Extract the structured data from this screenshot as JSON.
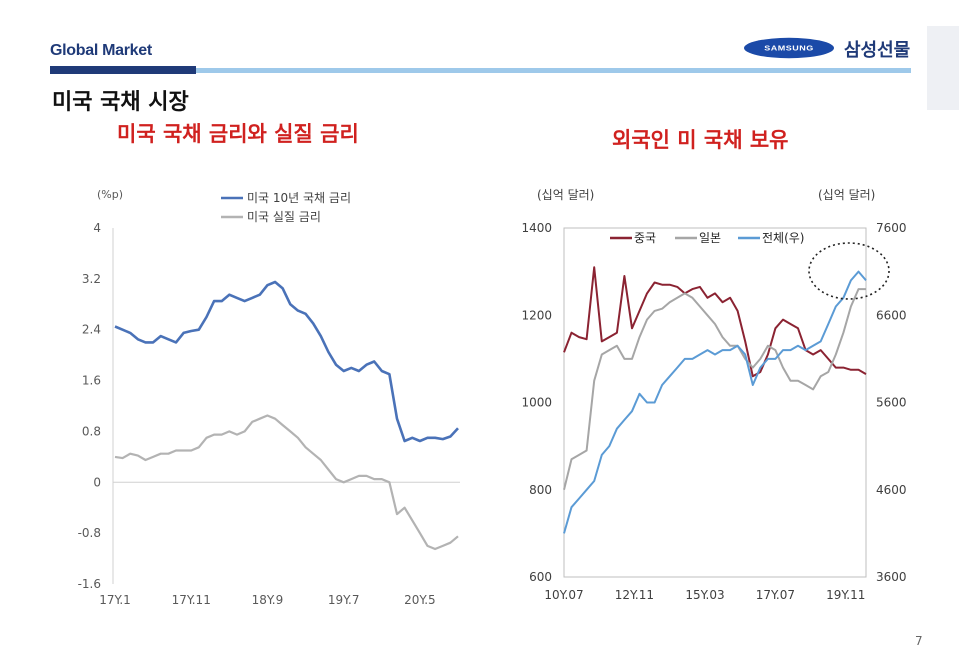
{
  "header": {
    "section_title": "Global Market",
    "brand_logo": "SAMSUNG",
    "brand_name": "삼성선물",
    "page_title": "미국 국채 시장",
    "page_number": "7"
  },
  "charts": {
    "left_title": "미국 국채 금리와 실질 금리",
    "right_title": "외국인 미 국채 보유"
  },
  "chart_data": [
    {
      "type": "line",
      "title": "미국 국채 금리와 실질 금리",
      "ylabel": "(%p)",
      "ylim": [
        -1.6,
        4
      ],
      "yticks": [
        "4",
        "3.2",
        "2.4",
        "1.6",
        "0.8",
        "0",
        "-0.8",
        "-1.6"
      ],
      "xticks": [
        "17Y.1",
        "17Y.11",
        "18Y.9",
        "19Y.7",
        "20Y.5"
      ],
      "xticks_month_index": [
        0,
        10,
        20,
        30,
        40
      ],
      "legend_position": "top",
      "x_month_index": [
        0,
        1,
        2,
        3,
        4,
        5,
        6,
        7,
        8,
        9,
        10,
        11,
        12,
        13,
        14,
        15,
        16,
        17,
        18,
        19,
        20,
        21,
        22,
        23,
        24,
        25,
        26,
        27,
        28,
        29,
        30,
        31,
        32,
        33,
        34,
        35,
        36,
        37,
        38,
        39,
        40,
        41,
        42,
        43,
        44,
        45
      ],
      "series": [
        {
          "name": "미국 10년 국채 금리",
          "color": "#4a72b8",
          "values": [
            2.45,
            2.4,
            2.35,
            2.25,
            2.2,
            2.2,
            2.3,
            2.25,
            2.2,
            2.35,
            2.38,
            2.4,
            2.6,
            2.85,
            2.85,
            2.95,
            2.9,
            2.85,
            2.9,
            2.95,
            3.1,
            3.15,
            3.05,
            2.8,
            2.7,
            2.65,
            2.5,
            2.3,
            2.05,
            1.85,
            1.75,
            1.8,
            1.75,
            1.85,
            1.9,
            1.75,
            1.7,
            1.0,
            0.65,
            0.7,
            0.65,
            0.7,
            0.7,
            0.68,
            0.72,
            0.85
          ]
        },
        {
          "name": "미국 실질 금리",
          "color": "#b3b3b3",
          "values": [
            0.4,
            0.38,
            0.45,
            0.42,
            0.35,
            0.4,
            0.45,
            0.45,
            0.5,
            0.5,
            0.5,
            0.55,
            0.7,
            0.75,
            0.75,
            0.8,
            0.75,
            0.8,
            0.95,
            1.0,
            1.05,
            1.0,
            0.9,
            0.8,
            0.7,
            0.55,
            0.45,
            0.35,
            0.2,
            0.05,
            0.0,
            0.05,
            0.1,
            0.1,
            0.05,
            0.05,
            0.0,
            -0.5,
            -0.4,
            -0.6,
            -0.8,
            -1.0,
            -1.05,
            -1.0,
            -0.95,
            -0.85
          ]
        }
      ]
    },
    {
      "type": "line",
      "title": "외국인 미 국채 보유",
      "ylabel": "(십억 달러)",
      "y2label": "(십억 달러)",
      "ylim": [
        600,
        1400
      ],
      "y2lim": [
        3600,
        7600
      ],
      "yticks": [
        "1400",
        "1200",
        "1000",
        "800",
        "600"
      ],
      "y2ticks": [
        "7600",
        "6600",
        "5600",
        "4600",
        "3600"
      ],
      "xticks": [
        "10Y.07",
        "12Y.11",
        "15Y.03",
        "17Y.07",
        "19Y.11"
      ],
      "xticks_year": [
        2010.5,
        2012.83,
        2015.17,
        2017.5,
        2019.83
      ],
      "legend_position": "top",
      "annotation": "dotted circle highlighting recent peak of total holdings",
      "x_year": [
        2010.5,
        2010.75,
        2011.0,
        2011.25,
        2011.5,
        2011.75,
        2012.0,
        2012.25,
        2012.5,
        2012.75,
        2013.0,
        2013.25,
        2013.5,
        2013.75,
        2014.0,
        2014.25,
        2014.5,
        2014.75,
        2015.0,
        2015.25,
        2015.5,
        2015.75,
        2016.0,
        2016.25,
        2016.5,
        2016.75,
        2017.0,
        2017.25,
        2017.5,
        2017.75,
        2018.0,
        2018.25,
        2018.5,
        2018.75,
        2019.0,
        2019.25,
        2019.5,
        2019.75,
        2020.0,
        2020.25,
        2020.5
      ],
      "series": [
        {
          "name": "중국",
          "axis": "left",
          "color": "#8b2332",
          "values": [
            1115,
            1160,
            1150,
            1145,
            1310,
            1140,
            1150,
            1160,
            1290,
            1170,
            1210,
            1250,
            1275,
            1270,
            1270,
            1265,
            1250,
            1260,
            1265,
            1240,
            1250,
            1230,
            1240,
            1210,
            1140,
            1060,
            1070,
            1110,
            1170,
            1190,
            1180,
            1170,
            1120,
            1110,
            1120,
            1100,
            1080,
            1080,
            1075,
            1075,
            1065
          ]
        },
        {
          "name": "일본",
          "axis": "left",
          "color": "#a6a6a6",
          "values": [
            800,
            870,
            880,
            890,
            1050,
            1110,
            1120,
            1130,
            1100,
            1100,
            1150,
            1190,
            1210,
            1215,
            1230,
            1240,
            1250,
            1240,
            1220,
            1200,
            1180,
            1150,
            1130,
            1130,
            1100,
            1080,
            1100,
            1130,
            1120,
            1080,
            1050,
            1050,
            1040,
            1030,
            1060,
            1070,
            1110,
            1160,
            1220,
            1260,
            1260
          ]
        },
        {
          "name": "전체(우)",
          "axis": "right",
          "color": "#5b9bd5",
          "values": [
            4100,
            4400,
            4500,
            4600,
            4700,
            5000,
            5100,
            5300,
            5400,
            5500,
            5700,
            5600,
            5600,
            5800,
            5900,
            6000,
            6100,
            6100,
            6150,
            6200,
            6150,
            6200,
            6200,
            6250,
            6150,
            5800,
            6000,
            6100,
            6100,
            6200,
            6200,
            6250,
            6200,
            6250,
            6300,
            6500,
            6700,
            6800,
            7000,
            7100,
            7000
          ]
        }
      ]
    }
  ]
}
